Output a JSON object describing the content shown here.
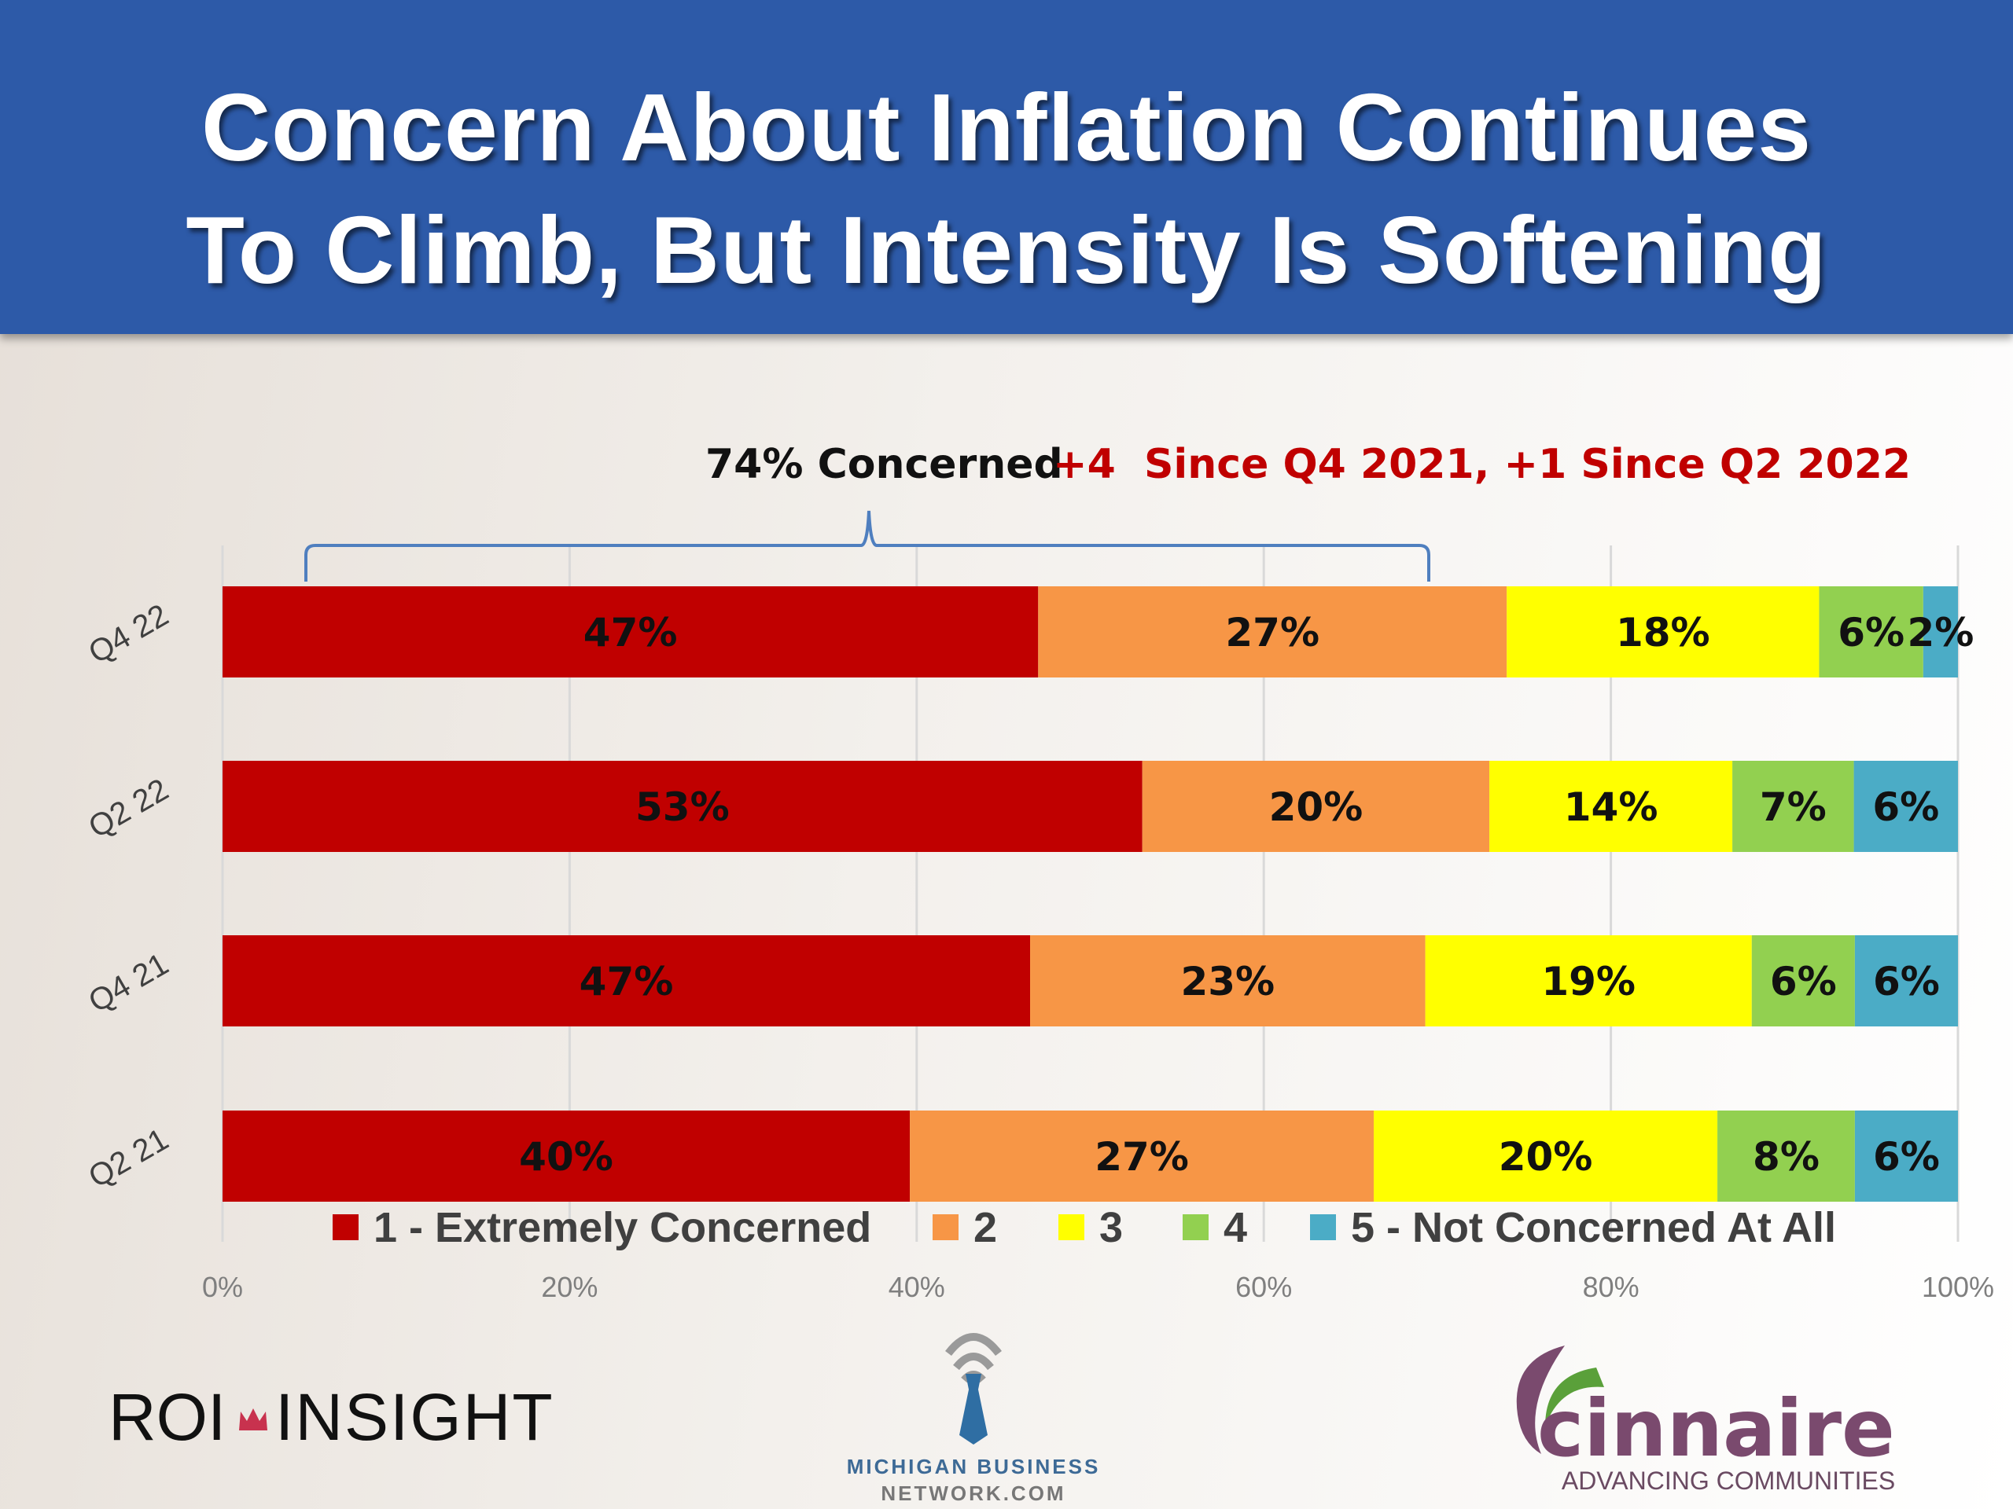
{
  "title": {
    "line1": "Concern About Inflation Continues",
    "line2": "To Climb, But Intensity Is Softening"
  },
  "chart_data": {
    "type": "bar",
    "orientation": "horizontal",
    "stacked": "100%",
    "categories": [
      "Q4 22",
      "Q2 22",
      "Q4 21",
      "Q2 21"
    ],
    "series": [
      {
        "name": "1 - Extremely Concerned",
        "color": "#c00000",
        "values": [
          47,
          53,
          47,
          40
        ]
      },
      {
        "name": "2",
        "color": "#f79646",
        "values": [
          27,
          20,
          23,
          27
        ]
      },
      {
        "name": "3",
        "color": "#ffff00",
        "values": [
          18,
          14,
          19,
          20
        ]
      },
      {
        "name": "4",
        "color": "#92d050",
        "values": [
          6,
          7,
          6,
          8
        ]
      },
      {
        "name": "5 - Not Concerned At All",
        "color": "#4bacc6",
        "values": [
          2,
          6,
          6,
          6
        ]
      }
    ],
    "xlim": [
      0,
      100
    ],
    "xticks": [
      "0%",
      "20%",
      "40%",
      "60%",
      "80%",
      "100%"
    ],
    "grid": true,
    "legend": "bottom",
    "annotation": {
      "concerned": "74% Concerned",
      "change": "+4  Since Q4 2021, +1 Since Q2 2022",
      "bracket_range": [
        5,
        69
      ]
    }
  },
  "logos": {
    "roi": {
      "left": "ROI",
      "right": "INSIGHT"
    },
    "mbn": {
      "line1": "MICHIGAN BUSINESS",
      "line2": "NETWORK.COM"
    },
    "cinnaire": {
      "name": "cinnaire",
      "tagline": "ADVANCING COMMUNITIES"
    }
  },
  "colors": {
    "header": "#2d5aa8",
    "annotation_red": "#c00000"
  }
}
